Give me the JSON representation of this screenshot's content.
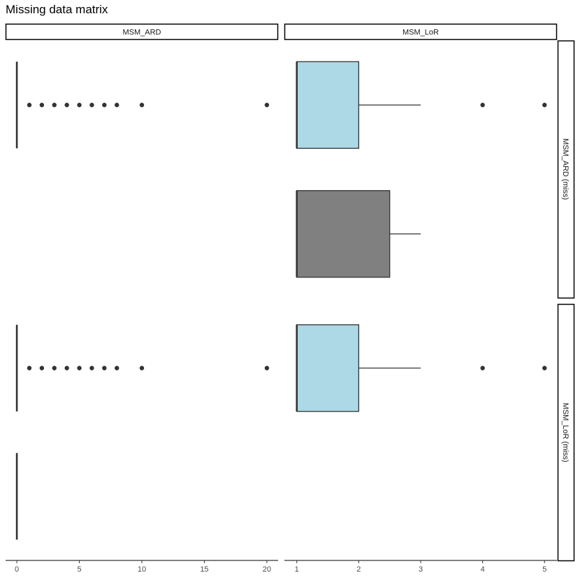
{
  "chart_data": {
    "type": "box",
    "title": "Missing data matrix",
    "column_strips": [
      "MSM_ARD",
      "MSM_LoR"
    ],
    "row_strips": [
      "MSM_ARD (miss)",
      "MSM_LoR (miss)"
    ],
    "x_axes": [
      {
        "range": [
          -0.9,
          20.9
        ],
        "ticks": [
          0,
          5,
          10,
          15,
          20
        ]
      },
      {
        "range": [
          0.8,
          5.2
        ],
        "ticks": [
          1,
          2,
          3,
          4,
          5
        ]
      }
    ],
    "fill_colors": {
      "observed": "#add8e6",
      "missing": "#808080"
    },
    "panels": [
      {
        "row": 0,
        "col": 0,
        "boxes": [
          {
            "group": "observed",
            "min": 0,
            "q1": 0,
            "median": 0,
            "q3": 0,
            "max": 0,
            "outliers": [
              1,
              2,
              3,
              4,
              5,
              6,
              7,
              8,
              10,
              20
            ]
          }
        ]
      },
      {
        "row": 0,
        "col": 1,
        "boxes": [
          {
            "group": "observed",
            "min": 1,
            "q1": 1,
            "median": 1,
            "q3": 2,
            "max": 3,
            "outliers": [
              4,
              5
            ]
          },
          {
            "group": "missing",
            "min": 1,
            "q1": 1,
            "median": 1,
            "q3": 2.5,
            "max": 3,
            "outliers": []
          }
        ]
      },
      {
        "row": 1,
        "col": 0,
        "boxes": [
          {
            "group": "observed",
            "min": 0,
            "q1": 0,
            "median": 0,
            "q3": 0,
            "max": 0,
            "outliers": [
              1,
              2,
              3,
              4,
              5,
              6,
              7,
              8,
              10,
              20
            ]
          },
          {
            "group": "missing",
            "min": 0,
            "q1": 0,
            "median": 0,
            "q3": 0,
            "max": 0,
            "outliers": []
          }
        ]
      },
      {
        "row": 1,
        "col": 1,
        "boxes": [
          {
            "group": "observed",
            "min": 1,
            "q1": 1,
            "median": 1,
            "q3": 2,
            "max": 3,
            "outliers": [
              4,
              5
            ]
          }
        ]
      }
    ]
  }
}
